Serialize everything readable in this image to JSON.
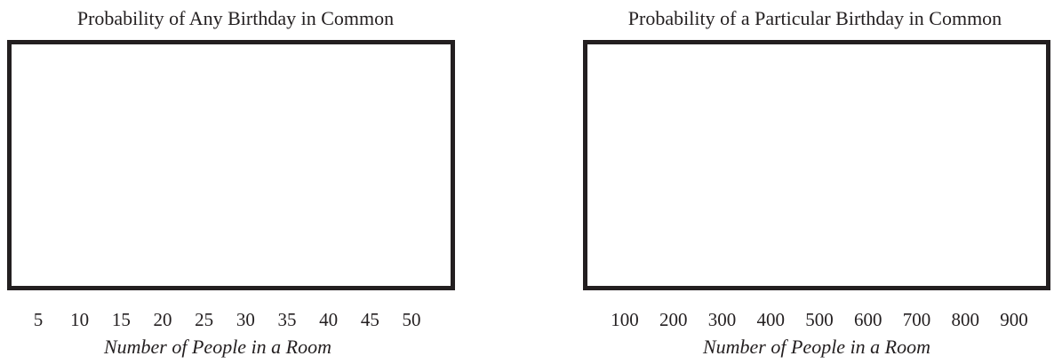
{
  "chart_data": [
    {
      "type": "line",
      "title": "Probability of Any Birthday in Common",
      "xlabel": "Number of People in a Room",
      "ylabel": "",
      "tick_labels": [
        "5",
        "10",
        "15",
        "20",
        "25",
        "30",
        "35",
        "40",
        "45",
        "50"
      ],
      "x_ticks": [
        5,
        10,
        15,
        20,
        25,
        30,
        35,
        40,
        45,
        50
      ],
      "series": [],
      "grid": false
    },
    {
      "type": "line",
      "title": "Probability of a Particular Birthday in Common",
      "xlabel": "Number of People in a Room",
      "ylabel": "",
      "tick_labels": [
        "100",
        "200",
        "300",
        "400",
        "500",
        "600",
        "700",
        "800",
        "900"
      ],
      "x_ticks": [
        100,
        200,
        300,
        400,
        500,
        600,
        700,
        800,
        900
      ],
      "series": [],
      "grid": false
    }
  ]
}
